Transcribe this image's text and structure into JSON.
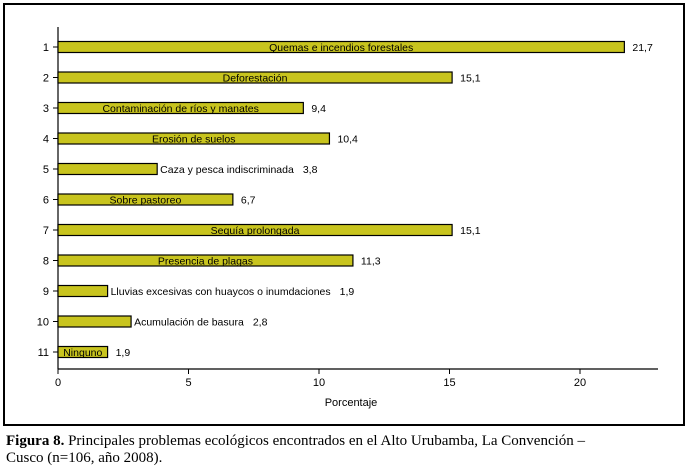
{
  "chart_data": {
    "type": "bar",
    "orientation": "horizontal",
    "categories": [
      "1",
      "2",
      "3",
      "4",
      "5",
      "6",
      "7",
      "8",
      "9",
      "10",
      "11"
    ],
    "bar_labels": [
      "Quemas e incendios forestales",
      "Deforestación",
      "Contaminación de ríos y manates",
      "Erosión de suelos",
      "Caza y pesca indiscriminada",
      "Sobre pastoreo",
      "Sequía prolongada",
      "Presencia de plagas",
      "Lluvias excesivas con huaycos o inumdaciones",
      "Acumulación de basura",
      "Ninguno"
    ],
    "values": [
      21.7,
      15.1,
      9.4,
      10.4,
      3.8,
      6.7,
      15.1,
      11.3,
      1.9,
      2.8,
      1.9
    ],
    "value_labels": [
      "21,7",
      "15,1",
      "9,4",
      "10,4",
      "3,8",
      "6,7",
      "15,1",
      "11,3",
      "1,9",
      "2,8",
      "1,9"
    ],
    "xlabel": "Porcentaje",
    "ylabel": "",
    "xlim": [
      0,
      23
    ],
    "xticks": [
      0,
      5,
      10,
      15,
      20
    ],
    "grid": false,
    "bar_color": "#c8c41e"
  },
  "caption": {
    "lead": "Figura 8.",
    "text": "Principales problemas ecológicos encontrados en el Alto Urubamba, La Convención – Cusco (n=106, año 2008)."
  }
}
